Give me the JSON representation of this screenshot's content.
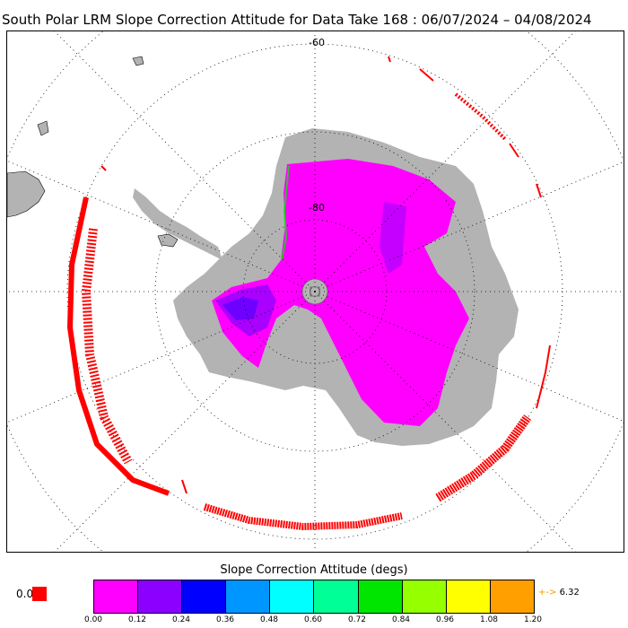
{
  "title": "South Polar LRM Slope Correction Attitude for Data Take 168 : 06/07/2024 – 04/08/2024",
  "map": {
    "lat_labels": [
      "-60",
      "-80"
    ],
    "ocean_color": "#ffffff",
    "land_color": "#b3b3b3",
    "data_color_dominant": "#ff00ff",
    "outlier_color": "#ff0000"
  },
  "legend": {
    "title": "Slope Correction Attitude (degs)",
    "colors": [
      "#ff00ff",
      "#8c00ff",
      "#0000ff",
      "#0096ff",
      "#00ffff",
      "#00ff96",
      "#00e600",
      "#96ff00",
      "#ffff00",
      "#ffa000"
    ],
    "ticks": [
      "0.00",
      "0.12",
      "0.24",
      "0.36",
      "0.48",
      "0.60",
      "0.72",
      "0.84",
      "0.96",
      "1.08",
      "1.20"
    ],
    "under_label": "0.0",
    "under_color": "#ff0000",
    "over_arrow": "+->",
    "over_value": "6.32"
  }
}
